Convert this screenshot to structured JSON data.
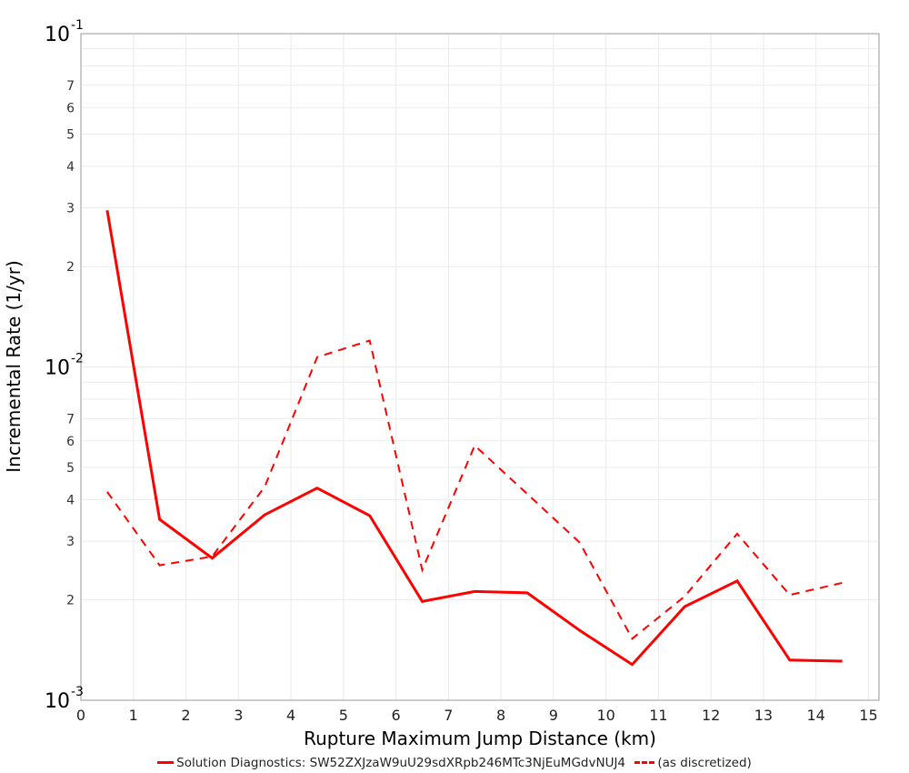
{
  "chart_data": {
    "type": "line",
    "title": "",
    "xlabel": "Rupture Maximum Jump Distance (km)",
    "ylabel": "Incremental Rate (1/yr)",
    "xlim": [
      0,
      15.2
    ],
    "ylim": [
      0.001,
      0.1
    ],
    "yscale": "log",
    "grid": true,
    "legend_position": "bottom",
    "x_ticks": [
      0,
      1,
      2,
      3,
      4,
      5,
      6,
      7,
      8,
      9,
      10,
      11,
      12,
      13,
      14,
      15
    ],
    "y_decade_ticks": [
      {
        "base": "10",
        "exp": "-1",
        "value": 0.1
      },
      {
        "base": "10",
        "exp": "-2",
        "value": 0.01
      },
      {
        "base": "10",
        "exp": "-3",
        "value": 0.001
      }
    ],
    "y_minor_labels": [
      "2",
      "3",
      "4",
      "5",
      "6",
      "7"
    ],
    "x": [
      0.5,
      1.5,
      2.5,
      3.5,
      4.5,
      5.5,
      6.5,
      7.5,
      8.5,
      9.5,
      10.5,
      11.5,
      12.5,
      13.5,
      14.5
    ],
    "series": [
      {
        "name": "Solution Diagnostics: SW52ZXJzaW9uU29sdXRpb246MTc3NjEuMGdvNUJ4",
        "style": "solid",
        "color": "#ff0000",
        "values": [
          0.0295,
          0.00349,
          0.00267,
          0.0036,
          0.00433,
          0.00358,
          0.00198,
          0.00212,
          0.0021,
          0.00162,
          0.00128,
          0.00191,
          0.00228,
          0.00132,
          0.00131
        ]
      },
      {
        "name": "(as discretized)",
        "style": "dashed",
        "color": "#ff0000",
        "values": [
          0.00422,
          0.00254,
          0.0027,
          0.00437,
          0.0107,
          0.012,
          0.00246,
          0.00581,
          0.00416,
          0.00297,
          0.00153,
          0.00205,
          0.00316,
          0.00207,
          0.00225
        ]
      }
    ]
  },
  "legend": {
    "solid_label": "Solution Diagnostics: SW52ZXJzaW9uU29sdXRpb246MTc3NjEuMGdvNUJ4",
    "dashed_label": "(as discretized)"
  },
  "colors": {
    "series": "#ff0000",
    "grid": "#ebebeb",
    "axis": "#aaaaaa"
  }
}
